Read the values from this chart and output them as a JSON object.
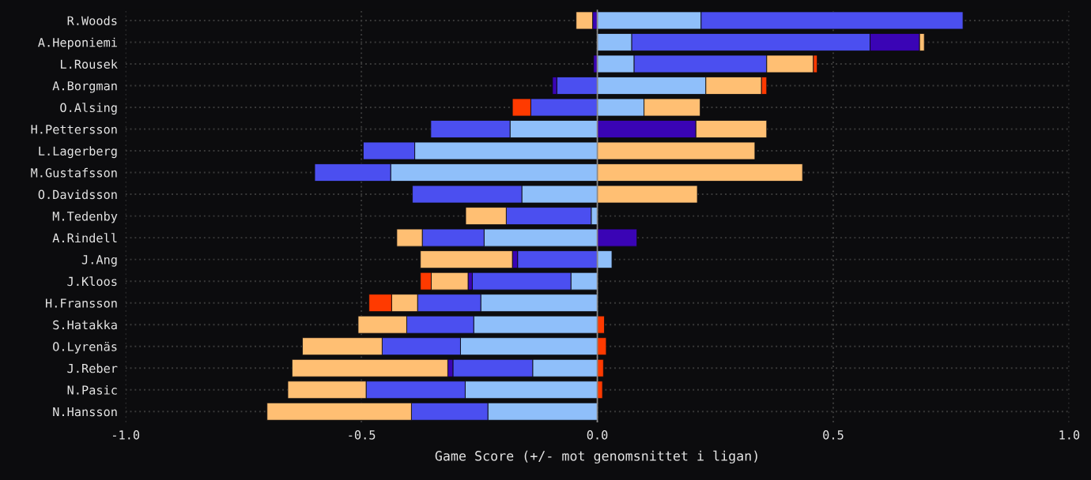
{
  "chart_data": {
    "type": "bar",
    "orientation": "horizontal",
    "stacked": true,
    "xlabel": "Game Score (+/- mot genomsnittet i ligan)",
    "categories": [
      "R.Woods",
      "A.Heponiemi",
      "L.Rousek",
      "A.Borgman",
      "O.Alsing",
      "H.Pettersson",
      "L.Lagerberg",
      "M.Gustafsson",
      "O.Davidsson",
      "M.Tedenby",
      "A.Rindell",
      "J.Ang",
      "J.Kloos",
      "H.Fransson",
      "S.Hatakka",
      "O.Lyrenäs",
      "J.Reber",
      "N.Pasic",
      "N.Hansson"
    ],
    "series": [
      {
        "color": "#8fbffa",
        "values": [
          0.22,
          0.073,
          0.078,
          0.23,
          0.099,
          -0.185,
          -0.387,
          -0.438,
          -0.16,
          -0.013,
          -0.24,
          0.031,
          -0.056,
          -0.247,
          -0.262,
          -0.29,
          -0.137,
          -0.28,
          -0.232
        ]
      },
      {
        "color": "#4b4ff0",
        "values": [
          0.555,
          0.505,
          0.281,
          -0.086,
          -0.141,
          -0.168,
          -0.109,
          -0.161,
          -0.232,
          -0.18,
          -0.131,
          -0.169,
          -0.209,
          -0.134,
          -0.142,
          -0.166,
          -0.169,
          -0.21,
          -0.162
        ]
      },
      {
        "color": "#3a04b5",
        "values": [
          -0.01,
          0.105,
          -0.008,
          -0.009,
          null,
          0.209,
          null,
          null,
          null,
          null,
          0.084,
          -0.011,
          -0.009,
          null,
          null,
          null,
          -0.011,
          null,
          null
        ]
      },
      {
        "color": "#ffbf73",
        "values": [
          -0.035,
          0.01,
          0.099,
          0.118,
          0.119,
          0.15,
          0.334,
          0.435,
          0.212,
          -0.086,
          -0.054,
          -0.195,
          -0.078,
          -0.055,
          -0.103,
          -0.169,
          -0.33,
          -0.166,
          -0.306
        ]
      },
      {
        "color": "#ff3a00",
        "values": [
          null,
          null,
          0.008,
          0.011,
          -0.039,
          null,
          null,
          null,
          null,
          null,
          null,
          null,
          -0.023,
          -0.048,
          0.015,
          0.019,
          0.013,
          0.011,
          null
        ]
      }
    ],
    "xlim": [
      -1.0,
      1.0
    ],
    "xticks": [
      {
        "value": -1.0,
        "label": "-1.0"
      },
      -0.5,
      {
        "value": 0.0,
        "label": "0.0"
      },
      0.5,
      {
        "value": 1.0,
        "label": "1.0"
      }
    ],
    "ref_lines": [
      {
        "axis": "x",
        "value": 0.0,
        "color": "#8a8a8a"
      }
    ],
    "grid": true
  }
}
